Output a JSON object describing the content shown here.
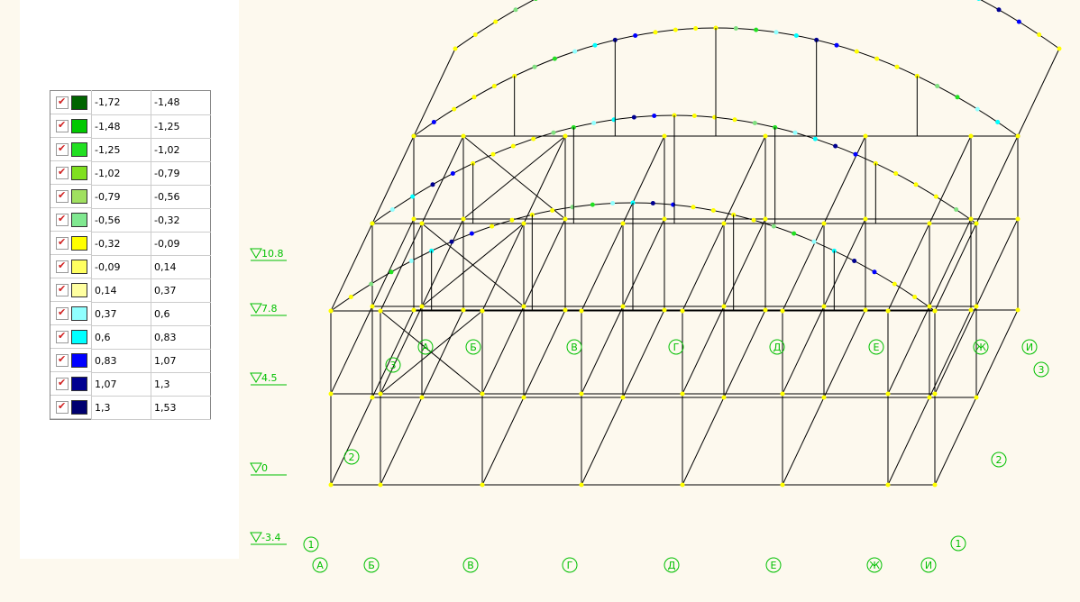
{
  "legend": {
    "rows": [
      {
        "color": "#006400",
        "from": "-1,72",
        "to": "-1,48"
      },
      {
        "color": "#00c800",
        "from": "-1,48",
        "to": "-1,25"
      },
      {
        "color": "#22e022",
        "from": "-1,25",
        "to": "-1,02"
      },
      {
        "color": "#80e020",
        "from": "-1,02",
        "to": "-0,79"
      },
      {
        "color": "#a0e060",
        "from": "-0,79",
        "to": "-0,56"
      },
      {
        "color": "#80e890",
        "from": "-0,56",
        "to": "-0,32"
      },
      {
        "color": "#ffff00",
        "from": "-0,32",
        "to": "-0,09"
      },
      {
        "color": "#ffff60",
        "from": "-0,09",
        "to": "0,14"
      },
      {
        "color": "#ffffa0",
        "from": "0,14",
        "to": "0,37"
      },
      {
        "color": "#90ffff",
        "from": "0,37",
        "to": "0,6"
      },
      {
        "color": "#00ffff",
        "from": "0,6",
        "to": "0,83"
      },
      {
        "color": "#0000ff",
        "from": "0,83",
        "to": "1,07"
      },
      {
        "color": "#000090",
        "from": "1,07",
        "to": "1,3"
      },
      {
        "color": "#000070",
        "from": "1,3",
        "to": "1,53"
      }
    ]
  },
  "elevations": [
    "10.8",
    "7.8",
    "4.5",
    "0",
    "-3.4"
  ],
  "axes_upper": [
    "А",
    "Б",
    "В",
    "Г",
    "Д",
    "Е",
    "Ж",
    "И"
  ],
  "axes_lower": [
    "А",
    "Б",
    "В",
    "Г",
    "Д",
    "Е",
    "Ж",
    "И"
  ],
  "axes_numbers": {
    "left_mid": "3",
    "right_mid": "3",
    "left_2": "2",
    "right_2": "2",
    "left_1": "1",
    "right_1": "1"
  }
}
